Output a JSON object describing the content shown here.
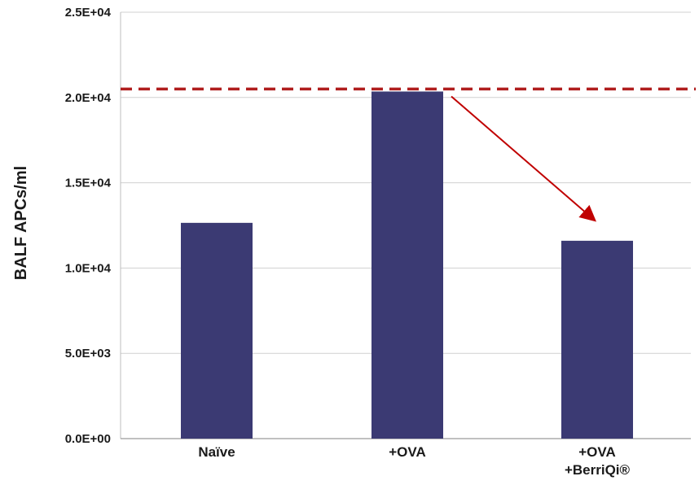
{
  "chart_data": {
    "type": "bar",
    "ylabel": "BALF APCs/ml",
    "xlabel": "",
    "title": "",
    "categories": [
      [
        "Naïve"
      ],
      [
        "+OVA"
      ],
      [
        "+OVA",
        "+BerriQi®"
      ]
    ],
    "values": [
      12650,
      20350,
      11600
    ],
    "ylim": [
      0,
      25000
    ],
    "yticks": [
      {
        "value": 0,
        "label": "0.0E+00"
      },
      {
        "value": 5000,
        "label": "5.0E+03"
      },
      {
        "value": 10000,
        "label": "1.0E+04"
      },
      {
        "value": 15000,
        "label": "1.5E+04"
      },
      {
        "value": 20000,
        "label": "2.0E+04"
      },
      {
        "value": 25000,
        "label": "2.5E+04"
      }
    ],
    "grid": true,
    "legend": "none",
    "reference_line": {
      "value": 20500,
      "style": "dashed"
    },
    "annotation_arrow": {
      "from_category": 1,
      "to_category": 2
    },
    "colors": {
      "bar": "#3b3a73",
      "grid": "#d0d0d0",
      "reference_line": "#b01e1e",
      "arrow": "#c00000"
    }
  }
}
